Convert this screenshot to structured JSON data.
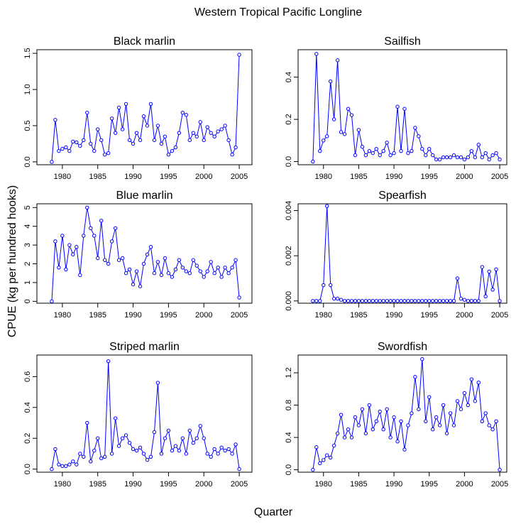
{
  "suptitle": "Western Tropical Pacific Longline",
  "ylabel": "CPUE (kg per hundred hooks)",
  "xlabel": "Quarter",
  "chart_data": [
    {
      "type": "line",
      "title": "Black marlin",
      "color": "#0000ff",
      "x": [
        1978.5,
        1979,
        1979.5,
        1980,
        1980.5,
        1981,
        1981.5,
        1982,
        1982.5,
        1983,
        1983.5,
        1984,
        1984.5,
        1985,
        1985.5,
        1986,
        1986.5,
        1987,
        1987.5,
        1988,
        1988.5,
        1989,
        1989.5,
        1990,
        1990.5,
        1991,
        1991.5,
        1992,
        1992.5,
        1993,
        1993.5,
        1994,
        1994.5,
        1995,
        1995.5,
        1996,
        1996.5,
        1997,
        1997.5,
        1998,
        1998.5,
        1999,
        1999.5,
        2000,
        2000.5,
        2001,
        2001.5,
        2002,
        2002.5,
        2003,
        2003.5,
        2004,
        2004.5,
        2005
      ],
      "values": [
        0.0,
        0.58,
        0.15,
        0.18,
        0.2,
        0.15,
        0.28,
        0.27,
        0.22,
        0.3,
        0.68,
        0.25,
        0.15,
        0.45,
        0.3,
        0.1,
        0.12,
        0.6,
        0.4,
        0.75,
        0.45,
        0.8,
        0.3,
        0.25,
        0.4,
        0.3,
        0.63,
        0.5,
        0.8,
        0.3,
        0.5,
        0.25,
        0.35,
        0.1,
        0.15,
        0.2,
        0.4,
        0.68,
        0.65,
        0.3,
        0.4,
        0.35,
        0.55,
        0.3,
        0.48,
        0.4,
        0.35,
        0.42,
        0.45,
        0.5,
        0.3,
        0.1,
        0.2,
        1.48
      ],
      "xlim": [
        1976.4,
        2006.8
      ],
      "xticks": [
        1980,
        1985,
        1990,
        1995,
        2000,
        2005
      ],
      "ylim": [
        -0.04,
        1.55
      ],
      "yticks": [
        {
          "value": 0,
          "label": "0.0"
        },
        {
          "value": 0.5,
          "label": "0.5"
        },
        {
          "value": 1,
          "label": "1.0"
        },
        {
          "value": 1.5,
          "label": "1.5"
        }
      ]
    },
    {
      "type": "line",
      "title": "Sailfish",
      "color": "#0000ff",
      "x": [
        1978.5,
        1979,
        1979.5,
        1980,
        1980.5,
        1981,
        1981.5,
        1982,
        1982.5,
        1983,
        1983.5,
        1984,
        1984.5,
        1985,
        1985.5,
        1986,
        1986.5,
        1987,
        1987.5,
        1988,
        1988.5,
        1989,
        1989.5,
        1990,
        1990.5,
        1991,
        1991.5,
        1992,
        1992.5,
        1993,
        1993.5,
        1994,
        1994.5,
        1995,
        1995.5,
        1996,
        1996.5,
        1997,
        1997.5,
        1998,
        1998.5,
        1999,
        1999.5,
        2000,
        2000.5,
        2001,
        2001.5,
        2002,
        2002.5,
        2003,
        2003.5,
        2004,
        2004.5,
        2005
      ],
      "values": [
        0.0,
        0.51,
        0.05,
        0.1,
        0.12,
        0.38,
        0.2,
        0.48,
        0.14,
        0.13,
        0.25,
        0.22,
        0.03,
        0.15,
        0.07,
        0.03,
        0.05,
        0.04,
        0.06,
        0.03,
        0.05,
        0.09,
        0.03,
        0.04,
        0.26,
        0.05,
        0.25,
        0.04,
        0.05,
        0.16,
        0.12,
        0.06,
        0.03,
        0.06,
        0.03,
        0.01,
        0.01,
        0.02,
        0.02,
        0.02,
        0.03,
        0.02,
        0.02,
        0.01,
        0.02,
        0.05,
        0.02,
        0.08,
        0.02,
        0.04,
        0.01,
        0.03,
        0.04,
        0.01
      ],
      "xlim": [
        1976.4,
        2006.0
      ],
      "xticks": [
        1980,
        1985,
        1990,
        1995,
        2000,
        2005
      ],
      "ylim": [
        -0.015,
        0.53
      ],
      "yticks": [
        {
          "value": 0,
          "label": "0.0"
        },
        {
          "value": 0.2,
          "label": "0.2"
        },
        {
          "value": 0.4,
          "label": "0.4"
        }
      ]
    },
    {
      "type": "line",
      "title": "Blue marlin",
      "color": "#0000ff",
      "x": [
        1978.5,
        1979,
        1979.5,
        1980,
        1980.5,
        1981,
        1981.5,
        1982,
        1982.5,
        1983,
        1983.5,
        1984,
        1984.5,
        1985,
        1985.5,
        1986,
        1986.5,
        1987,
        1987.5,
        1988,
        1988.5,
        1989,
        1989.5,
        1990,
        1990.5,
        1991,
        1991.5,
        1992,
        1992.5,
        1993,
        1993.5,
        1994,
        1994.5,
        1995,
        1995.5,
        1996,
        1996.5,
        1997,
        1997.5,
        1998,
        1998.5,
        1999,
        1999.5,
        2000,
        2000.5,
        2001,
        2001.5,
        2002,
        2002.5,
        2003,
        2003.5,
        2004,
        2004.5,
        2005
      ],
      "values": [
        0.0,
        3.2,
        1.8,
        3.5,
        1.7,
        3.0,
        2.5,
        2.9,
        1.4,
        3.5,
        5.0,
        3.9,
        3.5,
        2.3,
        4.3,
        2.2,
        2.0,
        3.2,
        3.9,
        2.2,
        2.3,
        1.5,
        1.7,
        0.9,
        1.6,
        0.8,
        2.0,
        2.5,
        2.9,
        1.5,
        2.1,
        1.4,
        2.3,
        1.5,
        1.3,
        1.7,
        2.2,
        1.8,
        1.6,
        1.5,
        2.2,
        1.9,
        1.6,
        1.3,
        1.6,
        2.1,
        1.5,
        1.8,
        1.3,
        1.8,
        1.5,
        1.8,
        2.2,
        0.2
      ],
      "xlim": [
        1976.4,
        2006.8
      ],
      "xticks": [
        1980,
        1985,
        1990,
        1995,
        2000,
        2005
      ],
      "ylim": [
        -0.1,
        5.2
      ],
      "yticks": [
        0,
        1,
        2,
        3,
        4,
        5
      ]
    },
    {
      "type": "line",
      "title": "Spearfish",
      "color": "#0000ff",
      "x": [
        1978.5,
        1979,
        1979.5,
        1980,
        1980.5,
        1981,
        1981.5,
        1982,
        1982.5,
        1983,
        1983.5,
        1984,
        1984.5,
        1985,
        1985.5,
        1986,
        1986.5,
        1987,
        1987.5,
        1988,
        1988.5,
        1989,
        1989.5,
        1990,
        1990.5,
        1991,
        1991.5,
        1992,
        1992.5,
        1993,
        1993.5,
        1994,
        1994.5,
        1995,
        1995.5,
        1996,
        1996.5,
        1997,
        1997.5,
        1998,
        1998.5,
        1999,
        1999.5,
        2000,
        2000.5,
        2001,
        2001.5,
        2002,
        2002.5,
        2003,
        2003.5,
        2004,
        2004.5,
        2005
      ],
      "values": [
        0,
        0,
        0,
        0.0007,
        0.0042,
        0.0007,
        0.0001,
        0.0001,
        5e-05,
        0,
        0,
        0,
        0,
        0,
        0,
        0,
        0,
        0,
        0,
        0,
        0,
        0,
        0,
        0,
        0,
        0,
        0,
        0,
        0,
        0,
        0,
        0,
        0,
        0,
        0,
        0,
        0,
        0,
        0,
        0,
        0,
        0.001,
        0.0001,
        5e-05,
        0,
        0,
        0,
        0,
        0.0015,
        0.0002,
        0.0013,
        0.0005,
        0.0014,
        0
      ],
      "xlim": [
        1976.4,
        2006.0
      ],
      "xticks": [
        1980,
        1985,
        1990,
        1995,
        2000,
        2005
      ],
      "ylim": [
        -0.0001,
        0.0043
      ],
      "yticks": [
        {
          "value": 0,
          "label": "0.000"
        },
        {
          "value": 0.002,
          "label": "0.002"
        },
        {
          "value": 0.004,
          "label": "0.004"
        }
      ]
    },
    {
      "type": "line",
      "title": "Striped marlin",
      "color": "#0000ff",
      "x": [
        1978.5,
        1979,
        1979.5,
        1980,
        1980.5,
        1981,
        1981.5,
        1982,
        1982.5,
        1983,
        1983.5,
        1984,
        1984.5,
        1985,
        1985.5,
        1986,
        1986.5,
        1987,
        1987.5,
        1988,
        1988.5,
        1989,
        1989.5,
        1990,
        1990.5,
        1991,
        1991.5,
        1992,
        1992.5,
        1993,
        1993.5,
        1994,
        1994.5,
        1995,
        1995.5,
        1996,
        1996.5,
        1997,
        1997.5,
        1998,
        1998.5,
        1999,
        1999.5,
        2000,
        2000.5,
        2001,
        2001.5,
        2002,
        2002.5,
        2003,
        2003.5,
        2004,
        2004.5,
        2005
      ],
      "values": [
        0.0,
        0.13,
        0.03,
        0.02,
        0.02,
        0.03,
        0.05,
        0.03,
        0.1,
        0.08,
        0.3,
        0.05,
        0.12,
        0.2,
        0.07,
        0.08,
        0.7,
        0.1,
        0.33,
        0.15,
        0.2,
        0.22,
        0.17,
        0.13,
        0.12,
        0.14,
        0.1,
        0.06,
        0.08,
        0.24,
        0.56,
        0.1,
        0.2,
        0.25,
        0.12,
        0.15,
        0.12,
        0.2,
        0.1,
        0.25,
        0.17,
        0.2,
        0.28,
        0.2,
        0.1,
        0.08,
        0.13,
        0.1,
        0.14,
        0.12,
        0.13,
        0.1,
        0.16,
        0.0
      ],
      "xlim": [
        1976.4,
        2006.8
      ],
      "xticks": [
        1980,
        1985,
        1990,
        1995,
        2000,
        2005
      ],
      "ylim": [
        -0.02,
        0.74
      ],
      "yticks": [
        {
          "value": 0,
          "label": "0.0"
        },
        {
          "value": 0.2,
          "label": "0.2"
        },
        {
          "value": 0.4,
          "label": "0.4"
        },
        {
          "value": 0.6,
          "label": "0.6"
        }
      ]
    },
    {
      "type": "line",
      "title": "Swordfish",
      "color": "#0000ff",
      "x": [
        1978.5,
        1979,
        1979.5,
        1980,
        1980.5,
        1981,
        1981.5,
        1982,
        1982.5,
        1983,
        1983.5,
        1984,
        1984.5,
        1985,
        1985.5,
        1986,
        1986.5,
        1987,
        1987.5,
        1988,
        1988.5,
        1989,
        1989.5,
        1990,
        1990.5,
        1991,
        1991.5,
        1992,
        1992.5,
        1993,
        1993.5,
        1994,
        1994.5,
        1995,
        1995.5,
        1996,
        1996.5,
        1997,
        1997.5,
        1998,
        1998.5,
        1999,
        1999.5,
        2000,
        2000.5,
        2001,
        2001.5,
        2002,
        2002.5,
        2003,
        2003.5,
        2004,
        2004.5,
        2005
      ],
      "values": [
        0.0,
        0.28,
        0.08,
        0.12,
        0.18,
        0.15,
        0.3,
        0.45,
        0.68,
        0.4,
        0.5,
        0.4,
        0.65,
        0.55,
        0.75,
        0.45,
        0.8,
        0.5,
        0.6,
        0.72,
        0.5,
        0.75,
        0.4,
        0.65,
        0.35,
        0.6,
        0.25,
        0.55,
        0.7,
        1.15,
        0.75,
        1.37,
        0.6,
        0.9,
        0.5,
        0.65,
        0.55,
        0.8,
        0.45,
        0.7,
        0.55,
        0.85,
        0.75,
        0.95,
        0.8,
        1.12,
        0.85,
        1.08,
        0.6,
        0.7,
        0.55,
        0.5,
        0.6,
        0.0
      ],
      "xlim": [
        1976.4,
        2006.0
      ],
      "xticks": [
        1980,
        1985,
        1990,
        1995,
        2000,
        2005
      ],
      "ylim": [
        -0.03,
        1.42
      ],
      "yticks": [
        {
          "value": 0,
          "label": "0.0"
        },
        {
          "value": 0.4,
          "label": "0.4"
        },
        {
          "value": 0.8,
          "label": "0.8"
        },
        {
          "value": 1.2,
          "label": "1.2"
        }
      ]
    }
  ]
}
